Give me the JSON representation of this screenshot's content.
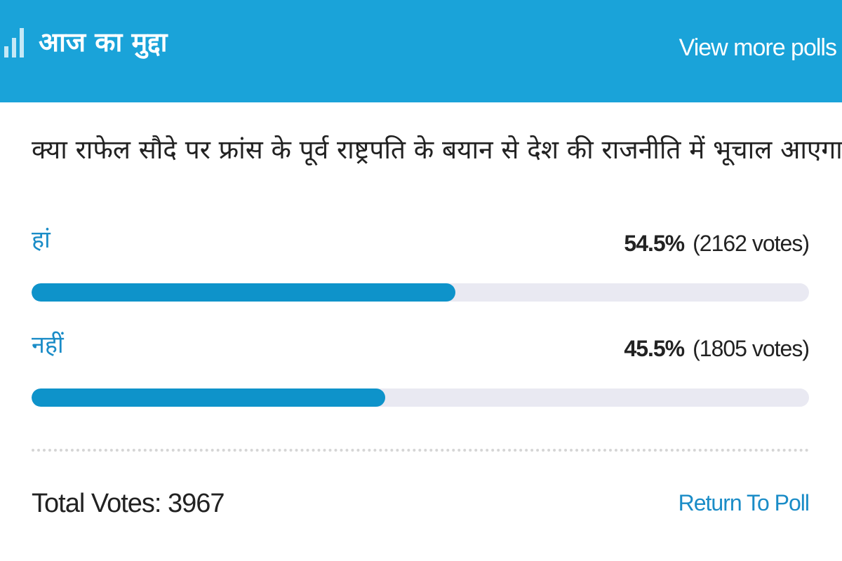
{
  "header": {
    "icon": "bar-chart-icon",
    "title": "आज का मुद्दा",
    "view_more_label": "View more polls",
    "color": "#1aa3d9"
  },
  "poll": {
    "question": "क्या राफेल सौदे पर फ्रांस के पूर्व राष्ट्रपति के बयान से देश की राजनीति में भूचाल आएगा?",
    "options": [
      {
        "label": "हां",
        "percent_text": "54.5%",
        "votes_text": "(2162 votes)",
        "fraction": 0.545
      },
      {
        "label": "नहीं",
        "percent_text": "45.5%",
        "votes_text": "(1805 votes)",
        "fraction": 0.455
      }
    ],
    "bar_color": "#0e93ca",
    "track_color": "#e9e9f2"
  },
  "footer": {
    "total_votes_text": "Total Votes: 3967",
    "return_label": "Return To Poll"
  }
}
